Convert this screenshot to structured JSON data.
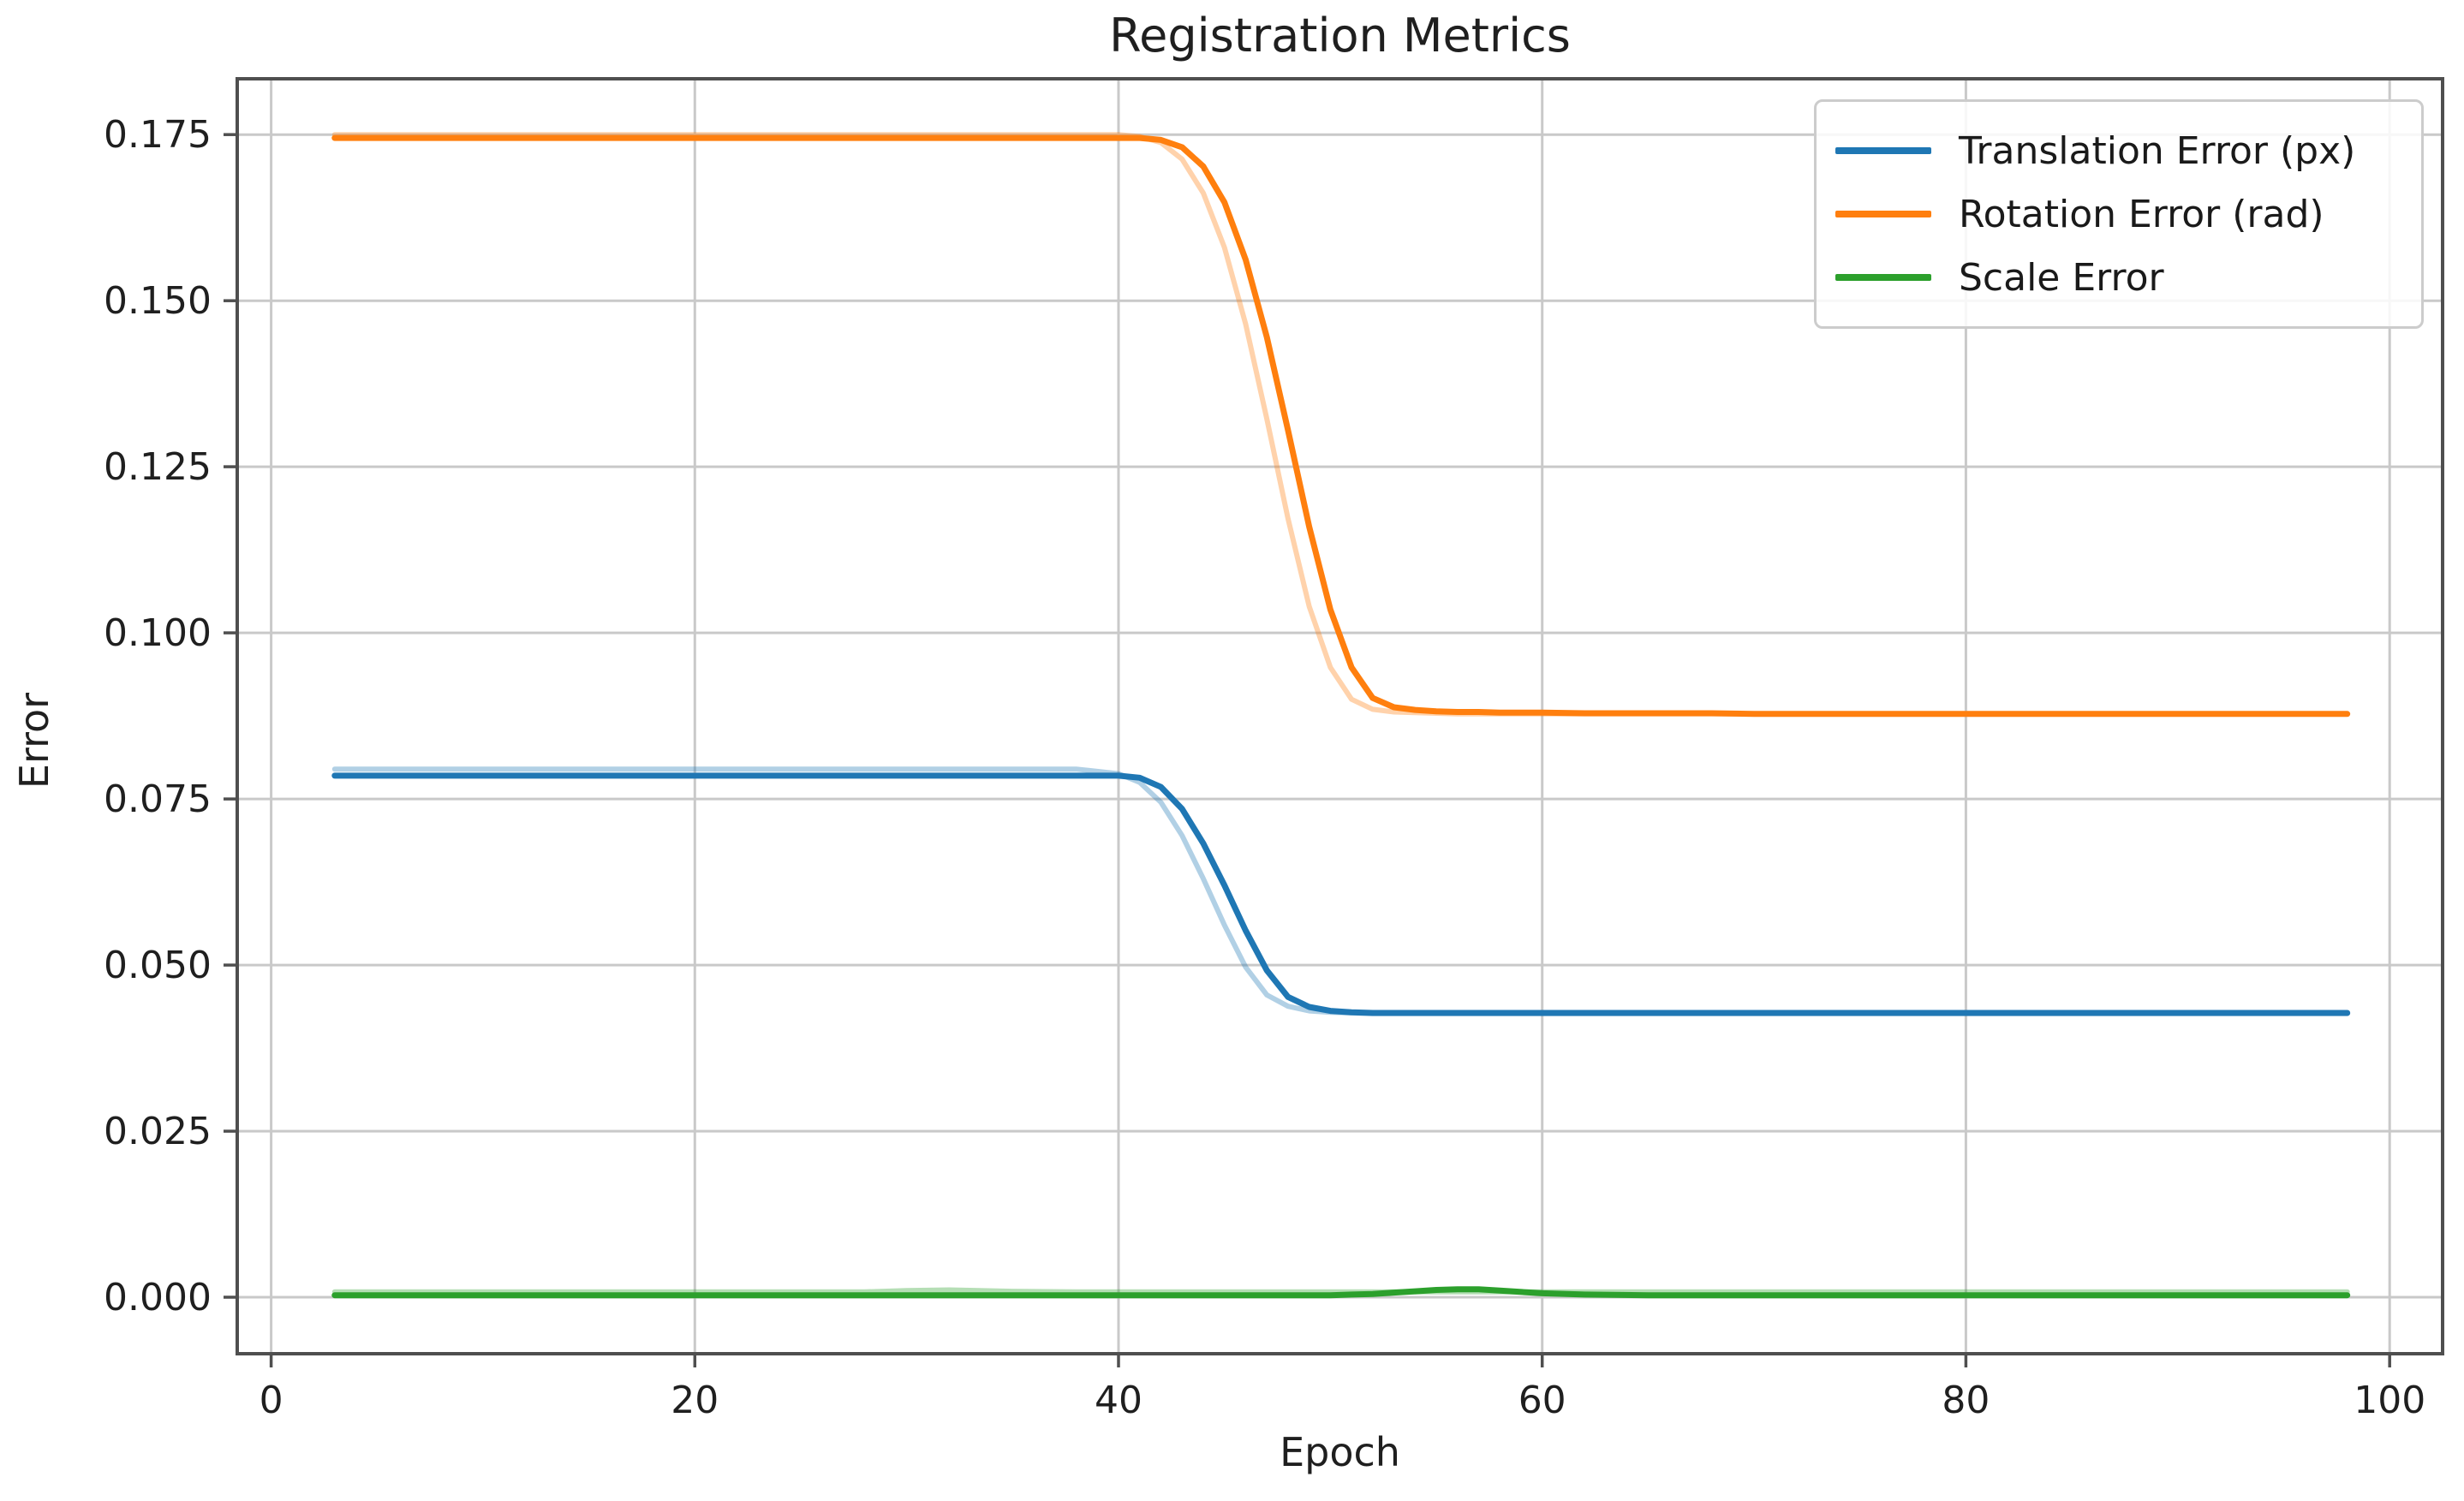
{
  "chart_data": {
    "type": "line",
    "title": "Registration Metrics",
    "xlabel": "Epoch",
    "ylabel": "Error",
    "grid": true,
    "legend_position": "upper right",
    "xlim": [
      -1.6,
      102.5
    ],
    "ylim": [
      -0.0085,
      0.1834
    ],
    "x_ticks": [
      0,
      20,
      40,
      60,
      80,
      100
    ],
    "x_tick_labels": [
      "0",
      "20",
      "40",
      "60",
      "80",
      "100"
    ],
    "y_ticks": [
      0.0,
      0.025,
      0.05,
      0.075,
      0.1,
      0.125,
      0.15,
      0.175
    ],
    "y_tick_labels": [
      "0.000",
      "0.025",
      "0.050",
      "0.075",
      "0.100",
      "0.125",
      "0.150",
      "0.175"
    ],
    "x": [
      3,
      5,
      8,
      10,
      12,
      15,
      18,
      20,
      22,
      25,
      28,
      30,
      32,
      35,
      38,
      40,
      41,
      42,
      43,
      44,
      45,
      46,
      47,
      48,
      49,
      50,
      51,
      52,
      53,
      54,
      55,
      56,
      57,
      58,
      60,
      62,
      65,
      68,
      70,
      75,
      80,
      85,
      90,
      95,
      98
    ],
    "series": [
      {
        "name": "Translation Error (px)",
        "color": "#1f77b4",
        "values": [
          0.0785,
          0.0785,
          0.0785,
          0.0785,
          0.0785,
          0.0785,
          0.0785,
          0.0785,
          0.0785,
          0.0785,
          0.0785,
          0.0785,
          0.0785,
          0.0785,
          0.0785,
          0.0785,
          0.0782,
          0.0768,
          0.0735,
          0.0683,
          0.062,
          0.0552,
          0.0492,
          0.0452,
          0.0437,
          0.0431,
          0.0429,
          0.0428,
          0.0428,
          0.0428,
          0.0428,
          0.0428,
          0.0428,
          0.0428,
          0.0428,
          0.0428,
          0.0428,
          0.0428,
          0.0428,
          0.0428,
          0.0428,
          0.0428,
          0.0428,
          0.0428,
          0.0428
        ],
        "raw_values": [
          0.0795,
          0.0795,
          0.0795,
          0.0795,
          0.0795,
          0.0795,
          0.0795,
          0.0795,
          0.0795,
          0.0795,
          0.0795,
          0.0795,
          0.0795,
          0.0795,
          0.0795,
          0.0788,
          0.0775,
          0.0745,
          0.0695,
          0.063,
          0.056,
          0.0497,
          0.0455,
          0.0438,
          0.0431,
          0.0429,
          0.0428,
          0.0427,
          0.0427,
          0.0427,
          0.0427,
          0.0427,
          0.0427,
          0.0427,
          0.0427,
          0.0427,
          0.0427,
          0.0427,
          0.0427,
          0.0427,
          0.0427,
          0.0427,
          0.0427,
          0.0427,
          0.0427
        ]
      },
      {
        "name": "Rotation Error (rad)",
        "color": "#ff7f0e",
        "values": [
          0.1745,
          0.1745,
          0.1745,
          0.1745,
          0.1745,
          0.1745,
          0.1745,
          0.1745,
          0.1745,
          0.1745,
          0.1745,
          0.1745,
          0.1745,
          0.1745,
          0.1745,
          0.1745,
          0.1745,
          0.1742,
          0.1731,
          0.1702,
          0.1648,
          0.1562,
          0.1445,
          0.1305,
          0.116,
          0.1035,
          0.0948,
          0.0902,
          0.0888,
          0.0884,
          0.0882,
          0.0881,
          0.0881,
          0.088,
          0.088,
          0.0879,
          0.0879,
          0.0879,
          0.0878,
          0.0878,
          0.0878,
          0.0878,
          0.0878,
          0.0878,
          0.0878
        ],
        "raw_values": [
          0.175,
          0.175,
          0.175,
          0.175,
          0.175,
          0.175,
          0.175,
          0.175,
          0.175,
          0.175,
          0.175,
          0.175,
          0.175,
          0.175,
          0.175,
          0.175,
          0.1747,
          0.1738,
          0.1713,
          0.1662,
          0.158,
          0.1465,
          0.1322,
          0.1172,
          0.104,
          0.0948,
          0.09,
          0.0885,
          0.0881,
          0.088,
          0.0879,
          0.0878,
          0.0878,
          0.0878,
          0.0878,
          0.0878,
          0.0878,
          0.0878,
          0.0878,
          0.0878,
          0.0878,
          0.0878,
          0.0878,
          0.0878,
          0.0878
        ]
      },
      {
        "name": "Scale Error",
        "color": "#2ca02c",
        "values": [
          0.0003,
          0.0003,
          0.0003,
          0.0003,
          0.0003,
          0.0003,
          0.0003,
          0.0003,
          0.0003,
          0.0003,
          0.0003,
          0.0003,
          0.0003,
          0.0003,
          0.0003,
          0.0003,
          0.0003,
          0.0003,
          0.0003,
          0.0003,
          0.0003,
          0.0003,
          0.0003,
          0.0003,
          0.0003,
          0.0003,
          0.0004,
          0.0005,
          0.0007,
          0.0009,
          0.0011,
          0.0012,
          0.0012,
          0.001,
          0.0006,
          0.0004,
          0.0003,
          0.0003,
          0.0003,
          0.0003,
          0.0003,
          0.0003,
          0.0003,
          0.0003,
          0.0003
        ],
        "raw_values": [
          0.0008,
          0.0008,
          0.0008,
          0.0008,
          0.0008,
          0.0008,
          0.0008,
          0.0008,
          0.0008,
          0.0008,
          0.0008,
          0.001,
          0.0011,
          0.0009,
          0.0008,
          0.0008,
          0.0008,
          0.0008,
          0.0008,
          0.0008,
          0.0008,
          0.0008,
          0.0008,
          0.0008,
          0.0008,
          0.0008,
          0.0008,
          0.0008,
          0.0008,
          0.0008,
          0.0008,
          0.0008,
          0.0008,
          0.0008,
          0.0008,
          0.0008,
          0.0008,
          0.0008,
          0.0008,
          0.0008,
          0.0008,
          0.0008,
          0.0008,
          0.0008,
          0.0008
        ]
      }
    ],
    "style_colors": {
      "grid": "#c9c9c9",
      "spine": "#4f4f4f",
      "tick_label": "#1f1f1f"
    }
  }
}
